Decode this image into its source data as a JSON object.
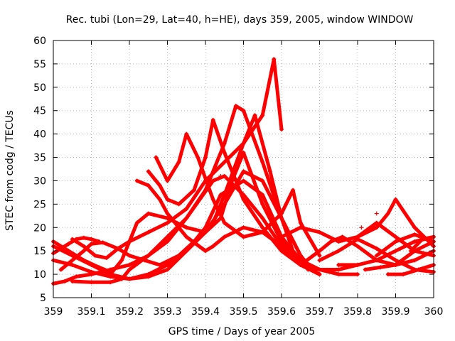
{
  "chart_data": {
    "type": "scatter",
    "title": "Rec. tubi (Lon=29, Lat=40, h=HE), days 359, 2005, window WINDOW",
    "xlabel": "GPS time / Days of year 2005",
    "ylabel": "STEC from codg / TECUs",
    "xlim": [
      359,
      360
    ],
    "ylim": [
      5,
      60
    ],
    "xticks": [
      359,
      359.1,
      359.2,
      359.3,
      359.4,
      359.5,
      359.6,
      359.7,
      359.8,
      359.9,
      360
    ],
    "xtick_labels": [
      "359",
      "359.1",
      "359.2",
      "359.3",
      "359.4",
      "359.5",
      "359.6",
      "359.7",
      "359.8",
      "359.9",
      "360"
    ],
    "yticks": [
      5,
      10,
      15,
      20,
      25,
      30,
      35,
      40,
      45,
      50,
      55,
      60
    ],
    "ytick_labels": [
      "5",
      "10",
      "15",
      "20",
      "25",
      "30",
      "35",
      "40",
      "45",
      "50",
      "55",
      "60"
    ],
    "grid": true,
    "marker": "plus",
    "color": "#ff0000",
    "series": [
      {
        "x": [
          359.0,
          359.03,
          359.06,
          359.1,
          359.15,
          359.2,
          359.25,
          359.3,
          359.35,
          359.42,
          359.45,
          359.5,
          359.55,
          359.6,
          359.65,
          359.7
        ],
        "y": [
          8,
          8.5,
          9.5,
          10,
          11,
          12,
          14,
          17,
          22,
          30,
          31,
          27,
          22,
          16,
          12,
          10
        ]
      },
      {
        "x": [
          359.0,
          359.05,
          359.1,
          359.15,
          359.2,
          359.25,
          359.3,
          359.35,
          359.4,
          359.45,
          359.5,
          359.55,
          359.6,
          359.65,
          359.68,
          359.7
        ],
        "y": [
          13,
          12,
          10.5,
          9.5,
          9,
          10,
          12,
          15,
          19,
          25,
          32,
          30,
          22,
          14,
          11,
          10
        ]
      },
      {
        "x": [
          359.0,
          359.05,
          359.1,
          359.15,
          359.2,
          359.25,
          359.3,
          359.35,
          359.4,
          359.44,
          359.5,
          359.55,
          359.6,
          359.65,
          359.7,
          359.75
        ],
        "y": [
          16,
          14,
          12,
          10,
          9,
          9.5,
          11,
          15,
          20,
          27,
          30,
          27,
          18,
          13,
          11,
          11
        ]
      },
      {
        "x": [
          359.0,
          359.04,
          359.08,
          359.12,
          359.15
        ],
        "y": [
          17,
          15,
          13,
          11.5,
          10.5
        ]
      },
      {
        "x": [
          359.02,
          359.05,
          359.08,
          359.1,
          359.13,
          359.17,
          359.2,
          359.24,
          359.28,
          359.33,
          359.37,
          359.42,
          359.45,
          359.5,
          359.53,
          359.57,
          359.6,
          359.63,
          359.67
        ],
        "y": [
          11,
          13,
          15,
          16.5,
          16.8,
          15.5,
          14,
          13,
          12,
          14,
          17,
          21,
          27,
          38,
          44,
          32,
          22,
          15,
          11
        ]
      },
      {
        "x": [
          359.05,
          359.08,
          359.11,
          359.14,
          359.17,
          359.2,
          359.25,
          359.3,
          359.35,
          359.4,
          359.45,
          359.5,
          359.55,
          359.58,
          359.6
        ],
        "y": [
          17.5,
          16,
          14,
          13.5,
          15.5,
          17,
          19,
          21,
          24,
          30,
          34,
          38,
          44,
          56,
          41
        ]
      },
      {
        "x": [
          359.0,
          359.02,
          359.04,
          359.06,
          359.08,
          359.1,
          359.12
        ],
        "y": [
          14.5,
          15.5,
          16.5,
          17.5,
          17.8,
          17.5,
          17.0
        ]
      },
      {
        "x": [
          359.05,
          359.1,
          359.15,
          359.18,
          359.2,
          359.25,
          359.3,
          359.35,
          359.4,
          359.45,
          359.48,
          359.5,
          359.55,
          359.6,
          359.65
        ],
        "y": [
          8.5,
          8.3,
          8.3,
          9,
          11,
          14,
          18,
          22,
          28,
          38,
          46,
          45,
          34,
          22,
          14
        ]
      },
      {
        "x": [
          359.15,
          359.18,
          359.2,
          359.22,
          359.25,
          359.3,
          359.35,
          359.4,
          359.44,
          359.47,
          359.5,
          359.55,
          359.6,
          359.65,
          359.7
        ],
        "y": [
          10,
          13,
          17,
          21,
          23,
          22,
          20,
          19,
          22,
          30,
          36,
          25,
          17,
          12,
          10
        ]
      },
      {
        "x": [
          359.22,
          359.25,
          359.28,
          359.3,
          359.35,
          359.4,
          359.42,
          359.45,
          359.5,
          359.55,
          359.6,
          359.65,
          359.7,
          359.75,
          359.8
        ],
        "y": [
          30,
          29,
          26,
          23,
          18,
          15,
          16,
          18,
          20,
          19,
          16,
          13,
          11,
          10,
          10
        ]
      },
      {
        "x": [
          359.25,
          359.28,
          359.3,
          359.33,
          359.37,
          359.4,
          359.42,
          359.45,
          359.5,
          359.55,
          359.6,
          359.65,
          359.7,
          359.75,
          359.8
        ],
        "y": [
          32,
          29,
          26,
          25,
          28,
          35,
          43,
          36,
          26,
          20,
          15,
          12,
          11,
          11,
          12
        ]
      },
      {
        "x": [
          359.27,
          359.3,
          359.33,
          359.35,
          359.38,
          359.42,
          359.45,
          359.5,
          359.55,
          359.6,
          359.63,
          359.65,
          359.7
        ],
        "y": [
          35,
          30,
          34,
          40,
          35,
          26,
          21,
          18,
          19,
          23,
          28,
          21,
          14
        ]
      },
      {
        "x": [
          359.6,
          359.65,
          359.7,
          359.75,
          359.8,
          359.85,
          359.9,
          359.95,
          360.0
        ],
        "y": [
          18,
          20,
          19,
          17,
          18,
          21,
          18,
          15,
          14
        ]
      },
      {
        "x": [
          359.65,
          359.7,
          359.73,
          359.76,
          359.8,
          359.85,
          359.9,
          359.95,
          360.0
        ],
        "y": [
          12,
          15,
          17,
          18,
          16,
          13,
          12,
          13,
          15
        ]
      },
      {
        "x": [
          359.7,
          359.75,
          359.8,
          359.85,
          359.9,
          359.95,
          360.0
        ],
        "y": [
          13,
          15,
          17.5,
          15.5,
          13,
          11,
          10.5
        ]
      },
      {
        "x": [
          359.75,
          359.8,
          359.85,
          359.9,
          359.95,
          360.0
        ],
        "y": [
          12,
          12,
          13,
          15,
          17,
          18
        ]
      },
      {
        "x": [
          359.8,
          359.85,
          359.88,
          359.9,
          359.95,
          360.0
        ],
        "y": [
          18,
          20,
          23,
          26,
          20,
          16
        ]
      },
      {
        "x": [
          359.82,
          359.86,
          359.9,
          359.95,
          360.0
        ],
        "y": [
          11,
          11.5,
          12,
          15,
          17
        ]
      },
      {
        "x": [
          359.85,
          359.9,
          359.95,
          360.0
        ],
        "y": [
          14,
          17,
          18.5,
          17
        ]
      },
      {
        "x": [
          359.88,
          359.92,
          359.96,
          360.0
        ],
        "y": [
          10,
          10,
          11,
          12
        ]
      },
      {
        "x": [
          359.94,
          359.97,
          360.0
        ],
        "y": [
          15,
          17.5,
          18
        ]
      }
    ],
    "scattered_points": [
      {
        "x": 359.85,
        "y": 23
      },
      {
        "x": 359.81,
        "y": 20
      },
      {
        "x": 359.44,
        "y": 31
      }
    ]
  }
}
